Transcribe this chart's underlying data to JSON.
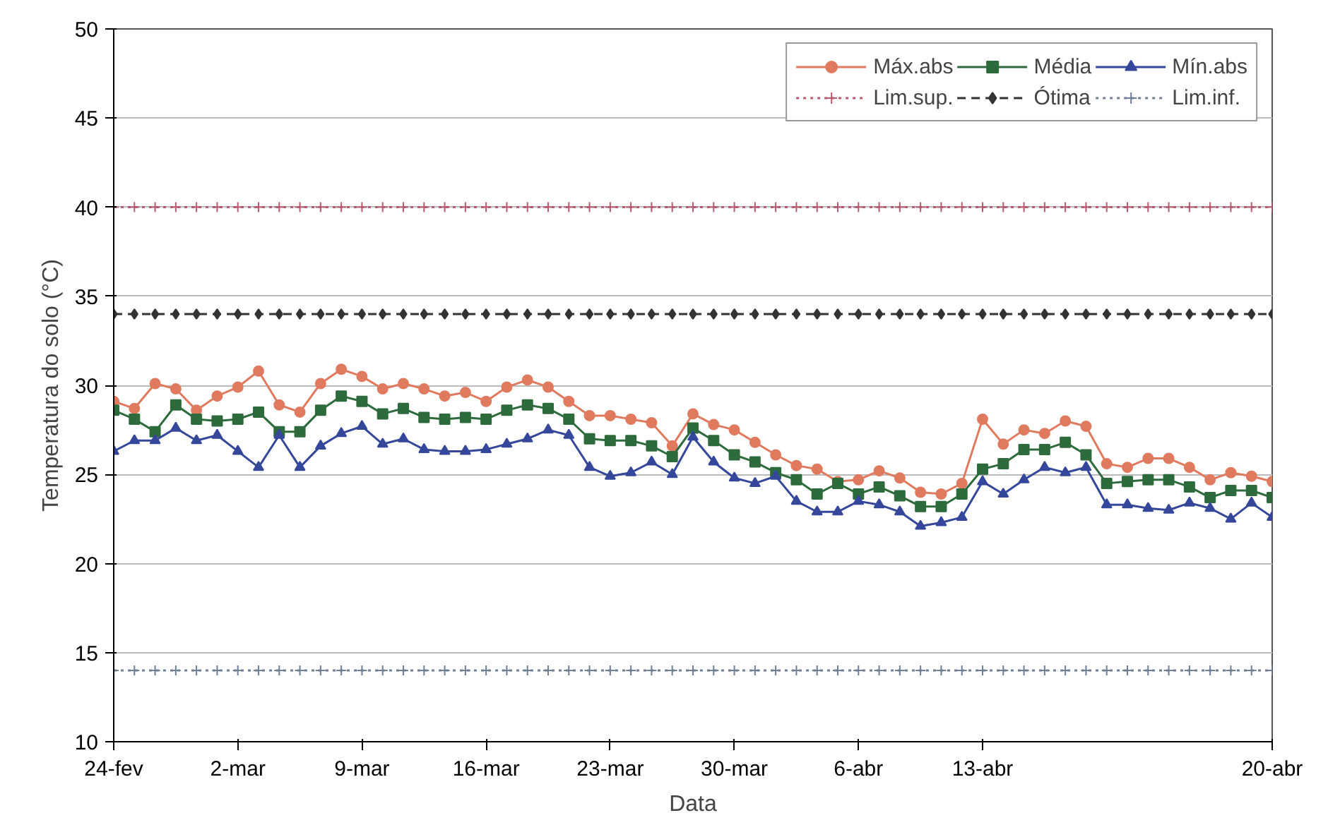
{
  "chart_data": {
    "type": "line",
    "xlabel": "Data",
    "ylabel": "Temperatura do solo (°C)",
    "categories": [
      "24-fev",
      null,
      null,
      null,
      null,
      null,
      "2-mar",
      null,
      null,
      null,
      null,
      null,
      "9-mar",
      null,
      null,
      null,
      null,
      null,
      "16-mar",
      null,
      null,
      null,
      null,
      null,
      "23-mar",
      null,
      null,
      null,
      null,
      null,
      "30-mar",
      null,
      null,
      null,
      null,
      null,
      "6-abr",
      null,
      null,
      null,
      null,
      null,
      "13-abr",
      null,
      null,
      null,
      null,
      null,
      null,
      null,
      null,
      null,
      null,
      null,
      null,
      null,
      "20-abr"
    ],
    "ylim": [
      10,
      50
    ],
    "yticks": [
      10,
      15,
      20,
      25,
      30,
      35,
      40,
      45,
      50
    ],
    "grid": "y",
    "legend": "top right",
    "series": [
      {
        "name": "Máx.abs",
        "color": "#e07a5f",
        "marker": "circle",
        "line_style": "solid",
        "values": [
          29.1,
          28.7,
          30.1,
          29.8,
          28.6,
          29.4,
          29.9,
          30.8,
          28.9,
          28.5,
          30.1,
          30.9,
          30.5,
          29.8,
          30.1,
          29.8,
          29.4,
          29.6,
          29.1,
          29.9,
          30.3,
          29.9,
          29.1,
          28.3,
          28.3,
          28.1,
          27.9,
          26.6,
          28.4,
          27.8,
          27.5,
          26.8,
          26.1,
          25.5,
          25.3,
          24.6,
          24.7,
          25.2,
          24.8,
          24.0,
          23.9,
          24.5,
          28.1,
          26.7,
          27.5,
          27.3,
          28.0,
          27.7,
          25.6,
          25.4,
          25.9,
          25.9,
          25.4,
          24.7,
          25.1,
          24.9,
          24.6
        ]
      },
      {
        "name": "Lim.sup.",
        "color": "#b85a6e",
        "marker": "cross",
        "line_style": "dotted",
        "values": [
          40,
          40,
          40,
          40,
          40,
          40,
          40,
          40,
          40,
          40,
          40,
          40,
          40,
          40,
          40,
          40,
          40,
          40,
          40,
          40,
          40,
          40,
          40,
          40,
          40,
          40,
          40,
          40,
          40,
          40,
          40,
          40,
          40,
          40,
          40,
          40,
          40,
          40,
          40,
          40,
          40,
          40,
          40,
          40,
          40,
          40,
          40,
          40,
          40,
          40,
          40,
          40,
          40,
          40,
          40,
          40,
          40
        ]
      },
      {
        "name": "Média",
        "color": "#2e6b3c",
        "marker": "square",
        "line_style": "solid",
        "values": [
          28.6,
          28.1,
          27.4,
          28.9,
          28.1,
          28.0,
          28.1,
          28.5,
          27.4,
          27.4,
          28.6,
          29.4,
          29.1,
          28.4,
          28.7,
          28.2,
          28.1,
          28.2,
          28.1,
          28.6,
          28.9,
          28.7,
          28.1,
          27.0,
          26.9,
          26.9,
          26.6,
          26.0,
          27.6,
          26.9,
          26.1,
          25.7,
          25.1,
          24.7,
          23.9,
          24.5,
          23.9,
          24.3,
          23.8,
          23.2,
          23.2,
          23.9,
          25.3,
          25.6,
          26.4,
          26.4,
          26.8,
          26.1,
          24.5,
          24.6,
          24.7,
          24.7,
          24.3,
          23.7,
          24.1,
          24.1,
          23.7
        ]
      },
      {
        "name": "Ótima",
        "color": "#333333",
        "marker": "diamond",
        "line_style": "dashed",
        "values": [
          34,
          34,
          34,
          34,
          34,
          34,
          34,
          34,
          34,
          34,
          34,
          34,
          34,
          34,
          34,
          34,
          34,
          34,
          34,
          34,
          34,
          34,
          34,
          34,
          34,
          34,
          34,
          34,
          34,
          34,
          34,
          34,
          34,
          34,
          34,
          34,
          34,
          34,
          34,
          34,
          34,
          34,
          34,
          34,
          34,
          34,
          34,
          34,
          34,
          34,
          34,
          34,
          34,
          34,
          34,
          34,
          34
        ]
      },
      {
        "name": "Mín.abs",
        "color": "#35479a",
        "marker": "triangle",
        "line_style": "solid",
        "values": [
          26.3,
          26.9,
          26.9,
          27.6,
          26.9,
          27.2,
          26.3,
          25.4,
          27.2,
          25.4,
          26.6,
          27.3,
          27.7,
          26.7,
          27.0,
          26.4,
          26.3,
          26.3,
          26.4,
          26.7,
          27.0,
          27.5,
          27.2,
          25.4,
          24.9,
          25.1,
          25.7,
          25.0,
          27.1,
          25.7,
          24.8,
          24.5,
          24.9,
          23.5,
          22.9,
          22.9,
          23.5,
          23.3,
          22.9,
          22.1,
          22.3,
          22.6,
          24.6,
          23.9,
          24.7,
          25.4,
          25.1,
          25.4,
          23.3,
          23.3,
          23.1,
          23.0,
          23.4,
          23.1,
          22.5,
          23.4,
          22.6
        ]
      },
      {
        "name": "Lim.inf.",
        "color": "#6f7f96",
        "marker": "cross",
        "line_style": "dotted",
        "values": [
          14,
          14,
          14,
          14,
          14,
          14,
          14,
          14,
          14,
          14,
          14,
          14,
          14,
          14,
          14,
          14,
          14,
          14,
          14,
          14,
          14,
          14,
          14,
          14,
          14,
          14,
          14,
          14,
          14,
          14,
          14,
          14,
          14,
          14,
          14,
          14,
          14,
          14,
          14,
          14,
          14,
          14,
          14,
          14,
          14,
          14,
          14,
          14,
          14,
          14,
          14,
          14,
          14,
          14,
          14,
          14,
          14
        ]
      }
    ]
  }
}
